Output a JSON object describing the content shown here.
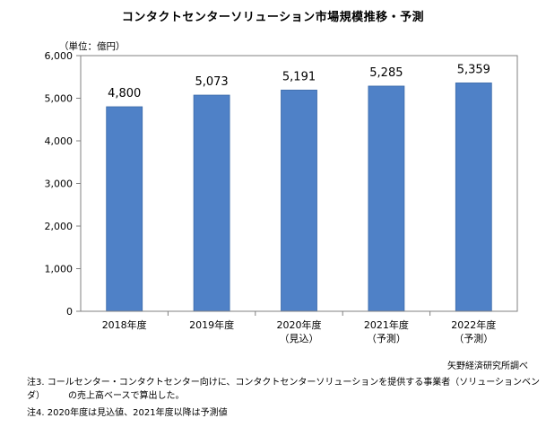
{
  "chart_data": {
    "type": "bar",
    "title": "コンタクトセンターソリューション市場規模推移・予測",
    "unit_label": "（単位：億円）",
    "categories": [
      {
        "year": "2018年度",
        "sub": ""
      },
      {
        "year": "2019年度",
        "sub": ""
      },
      {
        "year": "2020年度",
        "sub": "（見込）"
      },
      {
        "year": "2021年度",
        "sub": "（予測）"
      },
      {
        "year": "2022年度",
        "sub": "（予測）"
      }
    ],
    "values": [
      4800,
      5073,
      5191,
      5285,
      5359
    ],
    "value_labels": [
      "4,800",
      "5,073",
      "5,191",
      "5,285",
      "5,359"
    ],
    "ylim": [
      0,
      6000
    ],
    "yticks": [
      0,
      1000,
      2000,
      3000,
      4000,
      5000,
      6000
    ],
    "ytick_labels": [
      "0",
      "1,000",
      "2,000",
      "3,000",
      "4,000",
      "5,000",
      "6,000"
    ],
    "grid": false,
    "bar_color": "#4f81c7",
    "bar_edge_color": "#3a69a8",
    "frame_color": "#808080"
  },
  "source": "矢野経済研究所調べ",
  "notes": {
    "note3_line1": "注3. コールセンター・コンタクトセンター向けに、コンタクトセンターソリューションを提供する事業者（ソリューションベンダ）",
    "note3_line2": "の売上高ベースで算出した。",
    "note4": "注4. 2020年度は見込値、2021年度以降は予測値"
  }
}
